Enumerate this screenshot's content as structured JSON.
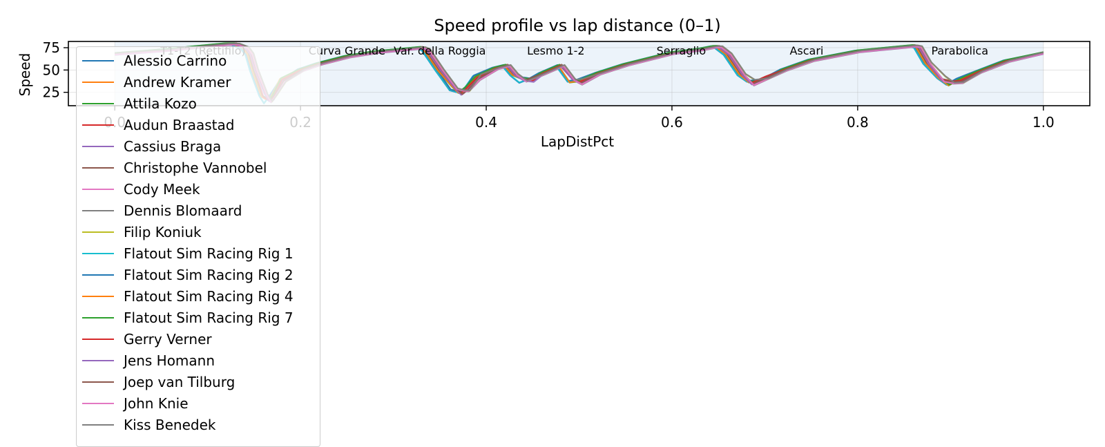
{
  "chart_data": {
    "type": "line",
    "title": "Speed profile vs lap distance (0–1)",
    "xlabel": "LapDistPct",
    "ylabel": "Speed",
    "xlim": [
      -0.05,
      1.05
    ],
    "ylim": [
      10,
      82
    ],
    "x_ticks": [
      0.0,
      0.2,
      0.4,
      0.6,
      0.8,
      1.0
    ],
    "x_tick_labels": [
      "0.0",
      "0.2",
      "0.4",
      "0.6",
      "0.8",
      "1.0"
    ],
    "y_ticks": [
      25,
      50,
      75
    ],
    "y_tick_labels": [
      "25",
      "50",
      "75"
    ],
    "grid": true,
    "legend_position": "upper-left",
    "sectors": [
      {
        "label": "T1-T2 (Rettifilo)",
        "start": 0.0,
        "end": 0.19
      },
      {
        "label": "Curva Grande",
        "start": 0.19,
        "end": 0.28
      },
      {
        "label": "Var. della Roggia",
        "start": 0.28,
        "end": 0.4
      },
      {
        "label": "Lesmo 1-2",
        "start": 0.4,
        "end": 0.55
      },
      {
        "label": "Serraglio",
        "start": 0.55,
        "end": 0.67
      },
      {
        "label": "Ascari",
        "start": 0.67,
        "end": 0.82
      },
      {
        "label": "Parabolica",
        "start": 0.82,
        "end": 1.0
      }
    ],
    "base_profile": {
      "x": [
        0.0,
        0.05,
        0.1,
        0.12,
        0.13,
        0.14,
        0.145,
        0.15,
        0.16,
        0.165,
        0.17,
        0.18,
        0.2,
        0.22,
        0.25,
        0.28,
        0.31,
        0.33,
        0.335,
        0.35,
        0.365,
        0.372,
        0.378,
        0.39,
        0.41,
        0.422,
        0.43,
        0.44,
        0.45,
        0.46,
        0.48,
        0.492,
        0.5,
        0.52,
        0.55,
        0.6,
        0.63,
        0.645,
        0.65,
        0.66,
        0.675,
        0.685,
        0.7,
        0.72,
        0.75,
        0.8,
        0.84,
        0.86,
        0.865,
        0.875,
        0.89,
        0.9,
        0.91,
        0.93,
        0.96,
        1.0
      ],
      "y": [
        68,
        72,
        77,
        79,
        79,
        75,
        68,
        50,
        22,
        16,
        20,
        38,
        50,
        57,
        65,
        70,
        73,
        75,
        73,
        50,
        30,
        25,
        27,
        42,
        52,
        55,
        45,
        39,
        40,
        46,
        55,
        39,
        37,
        46,
        56,
        69,
        73,
        76,
        76,
        68,
        45,
        36,
        40,
        50,
        61,
        71,
        75,
        77,
        76,
        58,
        40,
        35,
        38,
        48,
        60,
        69
      ]
    },
    "series": [
      {
        "name": "Alessio Carrino",
        "color": "#1f77b4"
      },
      {
        "name": "Andrew Kramer",
        "color": "#ff7f0e"
      },
      {
        "name": "Attila Kozo",
        "color": "#2ca02c"
      },
      {
        "name": "Audun Braastad",
        "color": "#d62728"
      },
      {
        "name": "Cassius Braga",
        "color": "#9467bd"
      },
      {
        "name": "Christophe Vannobel",
        "color": "#8c564b"
      },
      {
        "name": "Cody Meek",
        "color": "#e377c2"
      },
      {
        "name": "Dennis Blomaard",
        "color": "#7f7f7f"
      },
      {
        "name": "Filip Koniuk",
        "color": "#bcbd22"
      },
      {
        "name": "Flatout Sim Racing Rig 1",
        "color": "#17becf"
      },
      {
        "name": "Flatout Sim Racing Rig 2",
        "color": "#1f77b4"
      },
      {
        "name": "Flatout Sim Racing Rig 4",
        "color": "#ff7f0e"
      },
      {
        "name": "Flatout Sim Racing Rig 7",
        "color": "#2ca02c"
      },
      {
        "name": "Gerry Verner",
        "color": "#d62728"
      },
      {
        "name": "Jens Homann",
        "color": "#9467bd"
      },
      {
        "name": "Joep van Tilburg",
        "color": "#8c564b"
      },
      {
        "name": "John Knie",
        "color": "#e377c2"
      },
      {
        "name": "Kiss Benedek",
        "color": "#7f7f7f"
      }
    ]
  }
}
